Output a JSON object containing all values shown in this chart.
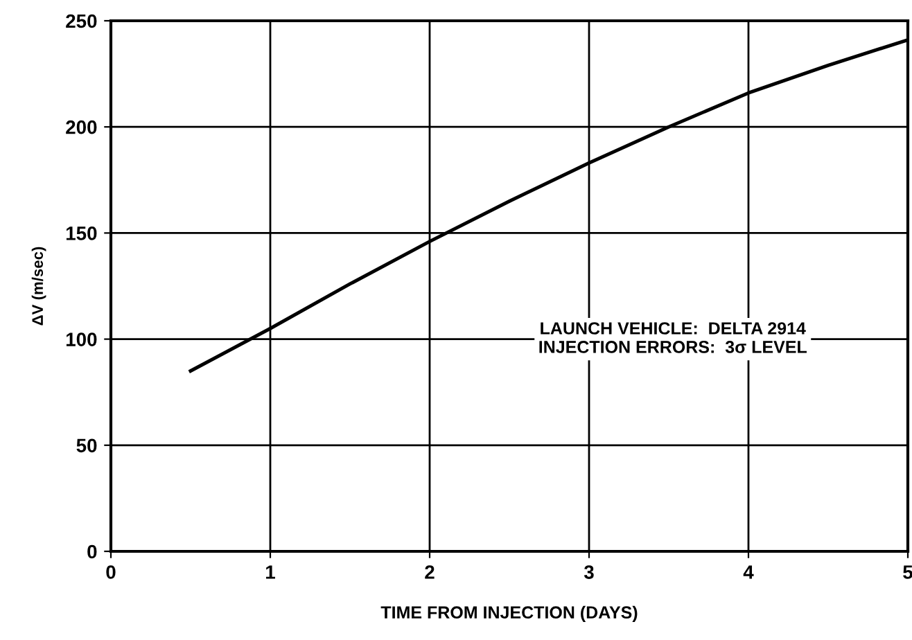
{
  "chart_data": {
    "type": "line",
    "xlabel": "TIME FROM INJECTION (DAYS)",
    "ylabel": "ΔV (m/sec)",
    "x": [
      0.5,
      1,
      1.5,
      2,
      2.5,
      3,
      3.5,
      4,
      4.5,
      5
    ],
    "series": [
      {
        "color": "#000000",
        "values": [
          85,
          105,
          126,
          146,
          165,
          183,
          200,
          216,
          229,
          241
        ]
      }
    ],
    "xlim": [
      0,
      5
    ],
    "xticks": [
      0,
      1,
      2,
      3,
      4,
      5
    ],
    "ylim": [
      0,
      250
    ],
    "yticks": [
      0,
      50,
      100,
      150,
      200,
      250
    ],
    "grid": true,
    "line_style": "solid",
    "annotations": [
      "LAUNCH VEHICLE:  DELTA 2914\nINJECTION ERRORS:  3σ LEVEL"
    ]
  }
}
